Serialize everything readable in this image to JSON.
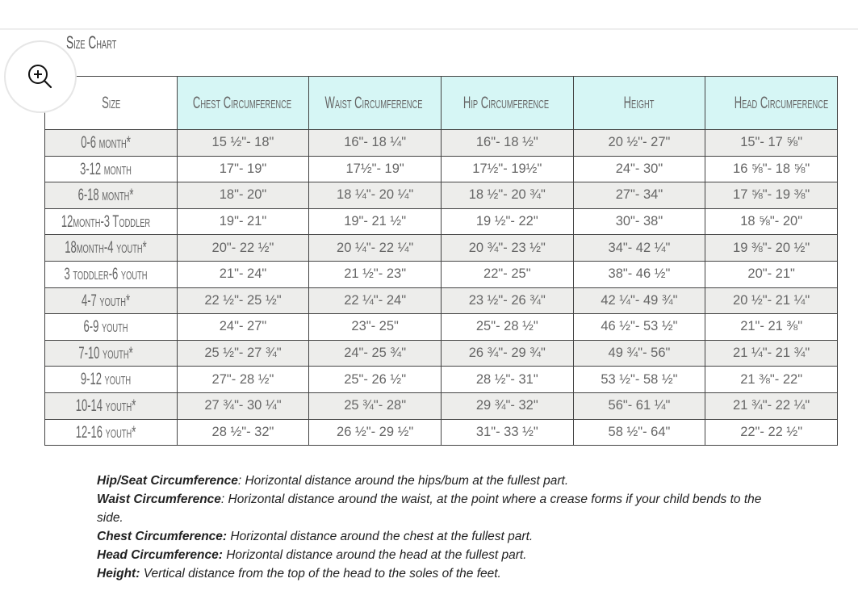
{
  "title": "Size Chart",
  "zoom_icon": "zoom-in-icon",
  "colors": {
    "header_bg": "#d6f6f5",
    "stripe_bg": "#ededeb"
  },
  "table": {
    "headers": [
      "Size",
      "Chest Circumference",
      "Waist Circumference",
      "Hip Circumference",
      "Height",
      "Head Circumference"
    ],
    "rows": [
      [
        "0-6 month*",
        "15 ½\"- 18\"",
        "16\"- 18 ¼\"",
        "16\"- 18 ½\"",
        "20 ½\"- 27\"",
        "15\"- 17 ⅝\""
      ],
      [
        "3-12 month",
        "17\"- 19\"",
        "17½\"- 19\"",
        "17½\"- 19½\"",
        "24\"- 30\"",
        "16 ⅝\"- 18 ⅝\""
      ],
      [
        "6-18 month*",
        "18\"- 20\"",
        "18 ¼\"- 20 ¼\"",
        "18 ½\"- 20 ¾\"",
        "27\"- 34\"",
        "17 ⅝\"- 19 ⅜\""
      ],
      [
        "12month-3 Toddler",
        "19\"- 21\"",
        "19\"- 21 ½\"",
        "19 ½\"- 22\"",
        "30\"- 38\"",
        "18 ⅝\"- 20\""
      ],
      [
        "18month-4 youth*",
        "20\"- 22 ½\"",
        "20 ¼\"- 22 ¼\"",
        "20 ¾\"- 23 ½\"",
        "34\"- 42 ¼\"",
        "19 ⅜\"- 20 ½\""
      ],
      [
        "3 toddler-6 youth",
        "21\"- 24\"",
        "21 ½\"- 23\"",
        "22\"- 25\"",
        "38\"- 46 ½\"",
        "20\"- 21\""
      ],
      [
        "4-7 youth*",
        "22 ½\"- 25 ½\"",
        "22 ¼\"- 24\"",
        "23 ½\"- 26 ¾\"",
        "42 ¼\"- 49 ¾\"",
        "20 ½\"- 21 ¼\""
      ],
      [
        "6-9 youth",
        "24\"- 27\"",
        "23\"- 25\"",
        "25\"- 28 ½\"",
        "46 ½\"- 53 ½\"",
        "21\"- 21 ⅜\""
      ],
      [
        "7-10 youth*",
        "25 ½\"- 27 ¾\"",
        "24\"- 25 ¾\"",
        "26 ¾\"- 29 ¾\"",
        "49 ¾\"- 56\"",
        "21 ¼\"- 21 ¾\""
      ],
      [
        "9-12 youth",
        "27\"- 28 ½\"",
        "25\"- 26 ½\"",
        "28 ½\"- 31\"",
        "53 ½\"- 58 ½\"",
        "21 ⅜\"- 22\""
      ],
      [
        "10-14 youth*",
        "27 ¾\"- 30 ¼\"",
        "25 ¾\"- 28\"",
        "29 ¾\"- 32\"",
        "56\"- 61 ¼\"",
        "21 ¾\"- 22 ¼\""
      ],
      [
        "12-16 youth*",
        "28 ½\"- 32\"",
        "26 ½\"- 29 ½\"",
        "31\"- 33 ½\"",
        "58 ½\"- 64\"",
        "22\"- 22 ½\""
      ]
    ]
  },
  "notes": [
    {
      "term": "Hip/Seat Circumference",
      "text": ": Horizontal distance around the hips/bum at the fullest part."
    },
    {
      "term": "Waist Circumference",
      "text": ": Horizontal distance around the waist, at the point where a crease forms if your child bends to the side."
    },
    {
      "term": "Chest Circumference:",
      "text": " Horizontal distance around the chest at the fullest part."
    },
    {
      "term": "Head Circumference:",
      "text": " Horizontal distance around the head at the fullest part."
    },
    {
      "term": "Height:",
      "text": " Vertical distance from the top of the head to the soles of the feet."
    }
  ]
}
